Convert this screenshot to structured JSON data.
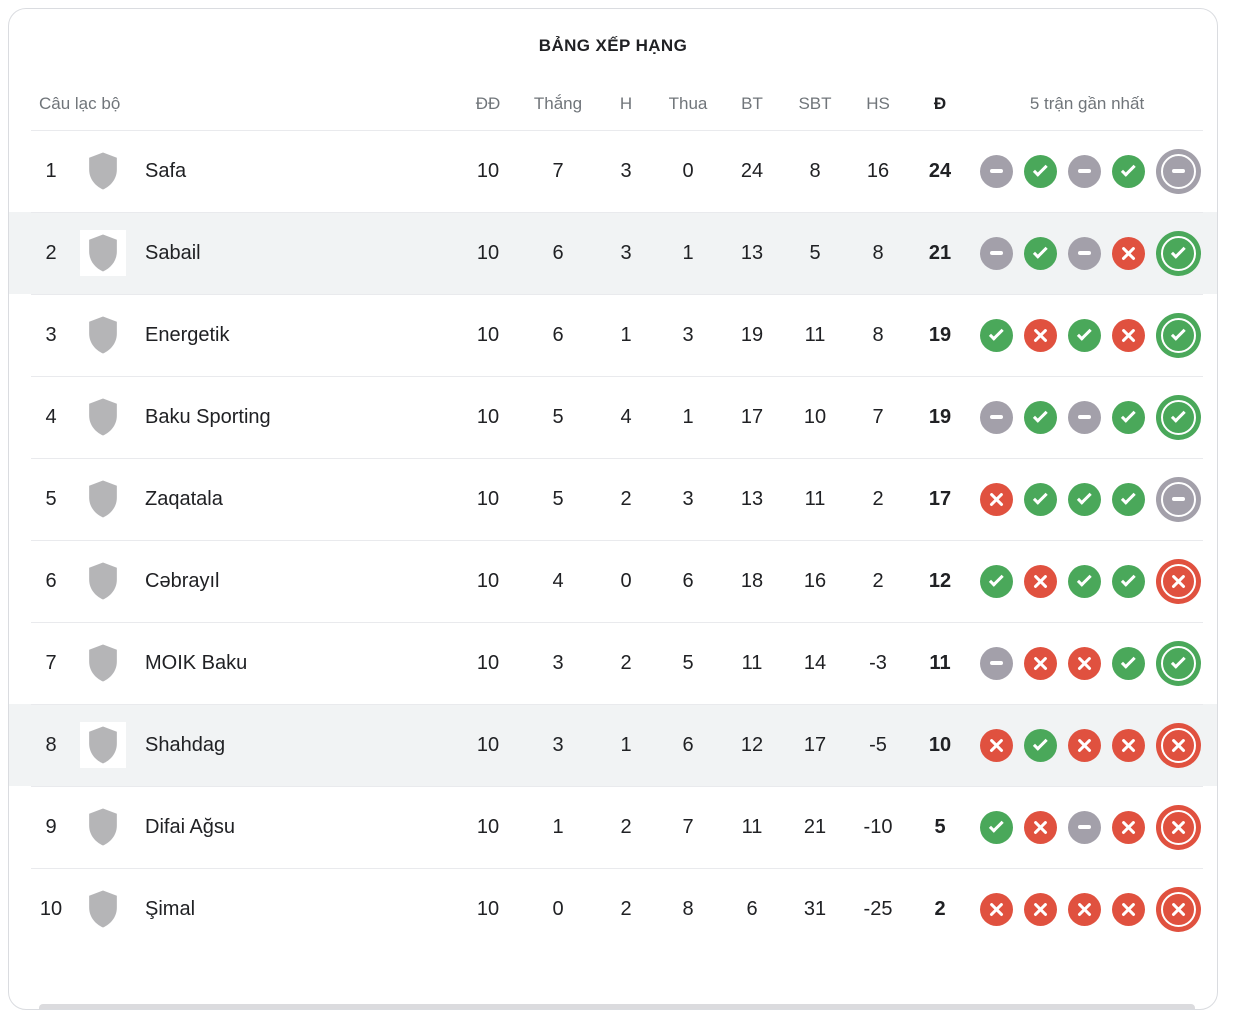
{
  "title": "BẢNG XẾP HẠNG",
  "table": {
    "headers": {
      "club": "Câu lạc bộ",
      "played": "ĐĐ",
      "wins": "Thắng",
      "draws": "H",
      "losses": "Thua",
      "goals_for": "BT",
      "goals_against": "SBT",
      "goal_diff": "HS",
      "points": "Đ",
      "form": "5 trận gần nhất"
    },
    "standings": [
      {
        "rank": 1,
        "team": "Safa",
        "played": 10,
        "wins": 7,
        "draws": 3,
        "losses": 0,
        "goals_for": 24,
        "goals_against": 8,
        "goal_diff": 16,
        "points": 24,
        "form": [
          "D",
          "W",
          "D",
          "W",
          "D"
        ],
        "highlighted": false
      },
      {
        "rank": 2,
        "team": "Sabail",
        "played": 10,
        "wins": 6,
        "draws": 3,
        "losses": 1,
        "goals_for": 13,
        "goals_against": 5,
        "goal_diff": 8,
        "points": 21,
        "form": [
          "D",
          "W",
          "D",
          "L",
          "W"
        ],
        "highlighted": true
      },
      {
        "rank": 3,
        "team": "Energetik",
        "played": 10,
        "wins": 6,
        "draws": 1,
        "losses": 3,
        "goals_for": 19,
        "goals_against": 11,
        "goal_diff": 8,
        "points": 19,
        "form": [
          "W",
          "L",
          "W",
          "L",
          "W"
        ],
        "highlighted": false
      },
      {
        "rank": 4,
        "team": "Baku Sporting",
        "played": 10,
        "wins": 5,
        "draws": 4,
        "losses": 1,
        "goals_for": 17,
        "goals_against": 10,
        "goal_diff": 7,
        "points": 19,
        "form": [
          "D",
          "W",
          "D",
          "W",
          "W"
        ],
        "highlighted": false
      },
      {
        "rank": 5,
        "team": "Zaqatala",
        "played": 10,
        "wins": 5,
        "draws": 2,
        "losses": 3,
        "goals_for": 13,
        "goals_against": 11,
        "goal_diff": 2,
        "points": 17,
        "form": [
          "L",
          "W",
          "W",
          "W",
          "D"
        ],
        "highlighted": false
      },
      {
        "rank": 6,
        "team": "Cəbrayıl",
        "played": 10,
        "wins": 4,
        "draws": 0,
        "losses": 6,
        "goals_for": 18,
        "goals_against": 16,
        "goal_diff": 2,
        "points": 12,
        "form": [
          "W",
          "L",
          "W",
          "W",
          "L"
        ],
        "highlighted": false
      },
      {
        "rank": 7,
        "team": "MOIK Baku",
        "played": 10,
        "wins": 3,
        "draws": 2,
        "losses": 5,
        "goals_for": 11,
        "goals_against": 14,
        "goal_diff": -3,
        "points": 11,
        "form": [
          "D",
          "L",
          "L",
          "W",
          "W"
        ],
        "highlighted": false
      },
      {
        "rank": 8,
        "team": "Shahdag",
        "played": 10,
        "wins": 3,
        "draws": 1,
        "losses": 6,
        "goals_for": 12,
        "goals_against": 17,
        "goal_diff": -5,
        "points": 10,
        "form": [
          "L",
          "W",
          "L",
          "L",
          "L"
        ],
        "highlighted": true
      },
      {
        "rank": 9,
        "team": "Difai Ağsu",
        "played": 10,
        "wins": 1,
        "draws": 2,
        "losses": 7,
        "goals_for": 11,
        "goals_against": 21,
        "goal_diff": -10,
        "points": 5,
        "form": [
          "W",
          "L",
          "D",
          "L",
          "L"
        ],
        "highlighted": false
      },
      {
        "rank": 10,
        "team": "Şimal",
        "played": 10,
        "wins": 0,
        "draws": 2,
        "losses": 8,
        "goals_for": 6,
        "goals_against": 31,
        "goal_diff": -25,
        "points": 2,
        "form": [
          "L",
          "L",
          "L",
          "L",
          "L"
        ],
        "highlighted": false
      }
    ]
  },
  "colors": {
    "win": "#4AA85A",
    "loss": "#E0513F",
    "draw": "#A3A0AA",
    "badge": "#B5B5B7",
    "row_highlight": "#F1F3F4",
    "divider": "#E9EAED",
    "card_border": "#DADCE0",
    "text_primary": "#202124",
    "text_secondary": "#70757A"
  }
}
